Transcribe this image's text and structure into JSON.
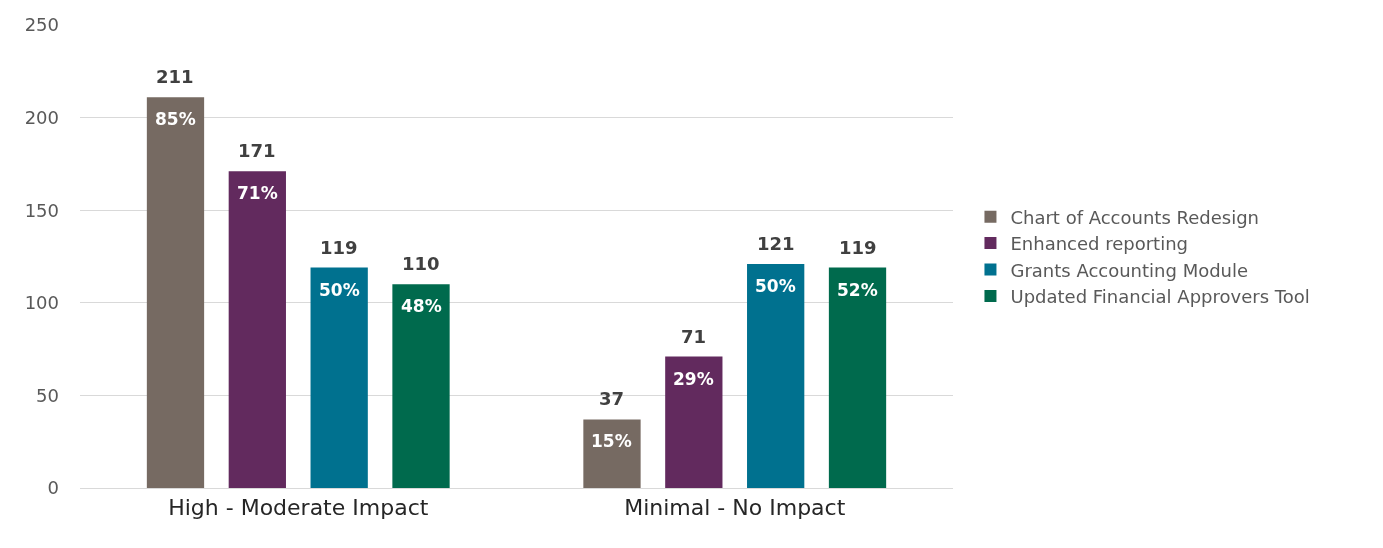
{
  "chart_data": {
    "type": "bar",
    "categories": [
      "High - Moderate Impact",
      "Minimal - No Impact"
    ],
    "series": [
      {
        "name": "Chart of Accounts Redesign",
        "color": "#766a62",
        "values": [
          211,
          37
        ]
      },
      {
        "name": "Enhanced reporting",
        "color": "#622a5e",
        "values": [
          171,
          71
        ]
      },
      {
        "name": "Grants Accounting Module",
        "color": "#00718f",
        "values": [
          119,
          121
        ]
      },
      {
        "name": "Updated Financial Approvers Tool",
        "color": "#006a4d",
        "values": [
          110,
          119
        ]
      }
    ],
    "annotations": [
      "85%",
      "71%",
      "50%",
      "48%",
      "15%",
      "29%",
      "50%",
      "52%"
    ],
    "ylim": [
      0,
      250
    ],
    "yticks": [
      0,
      50,
      100,
      150,
      200,
      250
    ],
    "grid": "y",
    "legend": "right",
    "data_labels": true
  }
}
